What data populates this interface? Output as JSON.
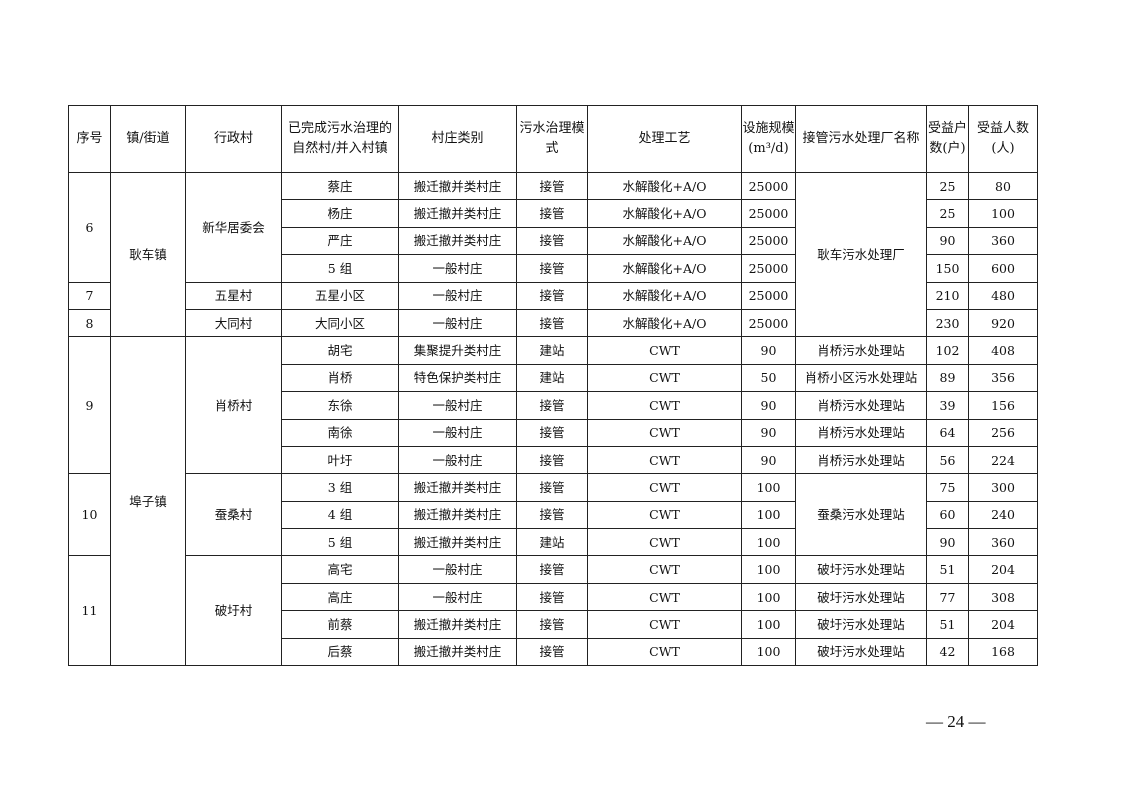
{
  "headers": [
    "序号",
    "镇/街道",
    "行政村",
    "已完成污水治理的自然村/并入村镇",
    "村庄类别",
    "污水治理模式",
    "处理工艺",
    "设施规模(m³/d)",
    "接管污水处理厂名称",
    "受益户数(户)",
    "受益人数(人)"
  ],
  "rows": [
    {
      "seq": "6",
      "seq_span": 4,
      "town": "耿车镇",
      "town_span": 6,
      "admin": "新华居委会",
      "admin_span": 4,
      "natural": "蔡庄",
      "category": "搬迁撤并类村庄",
      "mode": "接管",
      "process": "水解酸化+A/O",
      "scale": "25000",
      "plant": "耿车污水处理厂",
      "plant_span": 6,
      "households": "25",
      "people": "80"
    },
    {
      "natural": "杨庄",
      "category": "搬迁撤并类村庄",
      "mode": "接管",
      "process": "水解酸化+A/O",
      "scale": "25000",
      "households": "25",
      "people": "100"
    },
    {
      "natural": "严庄",
      "category": "搬迁撤并类村庄",
      "mode": "接管",
      "process": "水解酸化+A/O",
      "scale": "25000",
      "households": "90",
      "people": "360"
    },
    {
      "natural": "5 组",
      "category": "一般村庄",
      "mode": "接管",
      "process": "水解酸化+A/O",
      "scale": "25000",
      "households": "150",
      "people": "600"
    },
    {
      "seq": "7",
      "seq_span": 1,
      "admin": "五星村",
      "admin_span": 1,
      "natural": "五星小区",
      "category": "一般村庄",
      "mode": "接管",
      "process": "水解酸化+A/O",
      "scale": "25000",
      "households": "210",
      "people": "480"
    },
    {
      "seq": "8",
      "seq_span": 1,
      "admin": "大同村",
      "admin_span": 1,
      "natural": "大同小区",
      "category": "一般村庄",
      "mode": "接管",
      "process": "水解酸化+A/O",
      "scale": "25000",
      "households": "230",
      "people": "920"
    },
    {
      "seq": "9",
      "seq_span": 5,
      "town": "埠子镇",
      "town_span": 12,
      "admin": "肖桥村",
      "admin_span": 5,
      "natural": "胡宅",
      "category": "集聚提升类村庄",
      "mode": "建站",
      "process": "CWT",
      "scale": "90",
      "plant": "肖桥污水处理站",
      "plant_span": 1,
      "households": "102",
      "people": "408"
    },
    {
      "natural": "肖桥",
      "category": "特色保护类村庄",
      "mode": "建站",
      "process": "CWT",
      "scale": "50",
      "plant": "肖桥小区污水处理站",
      "plant_span": 1,
      "households": "89",
      "people": "356"
    },
    {
      "natural": "东徐",
      "category": "一般村庄",
      "mode": "接管",
      "process": "CWT",
      "scale": "90",
      "plant": "肖桥污水处理站",
      "plant_span": 1,
      "households": "39",
      "people": "156"
    },
    {
      "natural": "南徐",
      "category": "一般村庄",
      "mode": "接管",
      "process": "CWT",
      "scale": "90",
      "plant": "肖桥污水处理站",
      "plant_span": 1,
      "households": "64",
      "people": "256"
    },
    {
      "natural": "叶圩",
      "category": "一般村庄",
      "mode": "接管",
      "process": "CWT",
      "scale": "90",
      "plant": "肖桥污水处理站",
      "plant_span": 1,
      "households": "56",
      "people": "224"
    },
    {
      "seq": "10",
      "seq_span": 3,
      "admin": "蚕桑村",
      "admin_span": 3,
      "natural": "3 组",
      "category": "搬迁撤并类村庄",
      "mode": "接管",
      "process": "CWT",
      "scale": "100",
      "plant": "蚕桑污水处理站",
      "plant_span": 3,
      "households": "75",
      "people": "300"
    },
    {
      "natural": "4 组",
      "category": "搬迁撤并类村庄",
      "mode": "接管",
      "process": "CWT",
      "scale": "100",
      "households": "60",
      "people": "240"
    },
    {
      "natural": "5 组",
      "category": "搬迁撤并类村庄",
      "mode": "建站",
      "process": "CWT",
      "scale": "100",
      "households": "90",
      "people": "360"
    },
    {
      "seq": "11",
      "seq_span": 4,
      "admin": "破圩村",
      "admin_span": 4,
      "natural": "高宅",
      "category": "一般村庄",
      "mode": "接管",
      "process": "CWT",
      "scale": "100",
      "plant": "破圩污水处理站",
      "plant_span": 1,
      "households": "51",
      "people": "204"
    },
    {
      "natural": "高庄",
      "category": "一般村庄",
      "mode": "接管",
      "process": "CWT",
      "scale": "100",
      "plant": "破圩污水处理站",
      "plant_span": 1,
      "households": "77",
      "people": "308"
    },
    {
      "natural": "前蔡",
      "category": "搬迁撤并类村庄",
      "mode": "接管",
      "process": "CWT",
      "scale": "100",
      "plant": "破圩污水处理站",
      "plant_span": 1,
      "households": "51",
      "people": "204"
    },
    {
      "natural": "后蔡",
      "category": "搬迁撤并类村庄",
      "mode": "接管",
      "process": "CWT",
      "scale": "100",
      "plant": "破圩污水处理站",
      "plant_span": 1,
      "households": "42",
      "people": "168"
    }
  ],
  "page_number": "— 24 —"
}
